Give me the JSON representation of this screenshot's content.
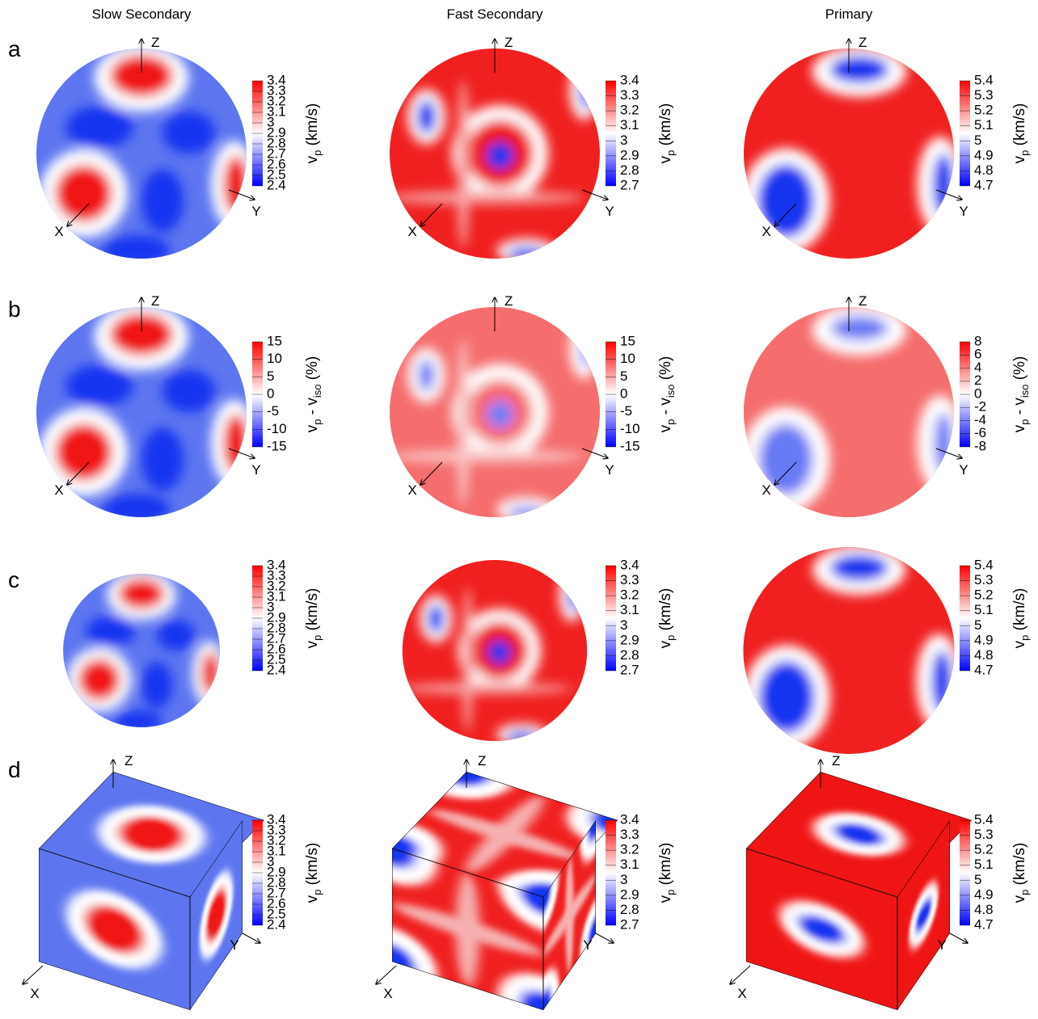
{
  "column_titles": [
    "Slow Secondary",
    "Fast Secondary",
    "Primary"
  ],
  "axis_labels": {
    "x": "X",
    "y": "Y",
    "z": "Z"
  },
  "colormap": [
    "#0000ff",
    "#ffffff",
    "#ff0000"
  ],
  "rows": [
    {
      "label": "a",
      "panels": [
        {
          "colorbar": {
            "title": [
              {
                "text": "v"
              },
              {
                "text": "p",
                "sub": true
              },
              {
                "text": " (km/s)"
              }
            ],
            "ticks": [
              3.4,
              3.3,
              3.2,
              3.1,
              3,
              2.9,
              2.8,
              2.7,
              2.6,
              2.5,
              2.4
            ]
          }
        },
        {
          "colorbar": {
            "title": [
              {
                "text": "v"
              },
              {
                "text": "p",
                "sub": true
              },
              {
                "text": " (km/s)"
              }
            ],
            "ticks": [
              3.4,
              3.3,
              3.2,
              3.1,
              3,
              2.9,
              2.8,
              2.7
            ]
          }
        },
        {
          "colorbar": {
            "title": [
              {
                "text": "v"
              },
              {
                "text": "p",
                "sub": true
              },
              {
                "text": " (km/s)"
              }
            ],
            "ticks": [
              5.4,
              5.3,
              5.2,
              5.1,
              5,
              4.9,
              4.8,
              4.7
            ]
          }
        }
      ]
    },
    {
      "label": "b",
      "panels": [
        {
          "colorbar": {
            "title": [
              {
                "text": "v"
              },
              {
                "text": "p",
                "sub": true
              },
              {
                "text": " - v"
              },
              {
                "text": "iso",
                "sub": true
              },
              {
                "text": " (%)"
              }
            ],
            "ticks": [
              15,
              10,
              5,
              0,
              -5,
              -10,
              -15
            ]
          }
        },
        {
          "colorbar": {
            "title": [
              {
                "text": "v"
              },
              {
                "text": "p",
                "sub": true
              },
              {
                "text": " - v"
              },
              {
                "text": "iso",
                "sub": true
              },
              {
                "text": " (%)"
              }
            ],
            "ticks": [
              15,
              10,
              5,
              0,
              -5,
              -10,
              -15
            ]
          }
        },
        {
          "colorbar": {
            "title": [
              {
                "text": "v"
              },
              {
                "text": "p",
                "sub": true
              },
              {
                "text": " - v"
              },
              {
                "text": "iso",
                "sub": true
              },
              {
                "text": " (%)"
              }
            ],
            "ticks": [
              8,
              6,
              4,
              2,
              0,
              -2,
              -4,
              -6,
              -8
            ]
          }
        }
      ]
    },
    {
      "label": "c",
      "panels": [
        {
          "colorbar": {
            "title": [
              {
                "text": "v"
              },
              {
                "text": "p",
                "sub": true
              },
              {
                "text": " (km/s)"
              }
            ],
            "ticks": [
              3.4,
              3.3,
              3.2,
              3.1,
              3,
              2.9,
              2.8,
              2.7,
              2.6,
              2.5,
              2.4
            ]
          }
        },
        {
          "colorbar": {
            "title": [
              {
                "text": "v"
              },
              {
                "text": "p",
                "sub": true
              },
              {
                "text": " (km/s)"
              }
            ],
            "ticks": [
              3.4,
              3.3,
              3.2,
              3.1,
              3,
              2.9,
              2.8,
              2.7
            ]
          }
        },
        {
          "colorbar": {
            "title": [
              {
                "text": "v"
              },
              {
                "text": "p",
                "sub": true
              },
              {
                "text": " (km/s)"
              }
            ],
            "ticks": [
              5.4,
              5.3,
              5.2,
              5.1,
              5,
              4.9,
              4.8,
              4.7
            ]
          }
        }
      ]
    },
    {
      "label": "d",
      "panels": [
        {
          "colorbar": {
            "title": [
              {
                "text": "v"
              },
              {
                "text": "p",
                "sub": true
              },
              {
                "text": " (km/s)"
              }
            ],
            "ticks": [
              3.4,
              3.3,
              3.2,
              3.1,
              3,
              2.9,
              2.8,
              2.7,
              2.6,
              2.5,
              2.4
            ]
          }
        },
        {
          "colorbar": {
            "title": [
              {
                "text": "v"
              },
              {
                "text": "p",
                "sub": true
              },
              {
                "text": " (km/s)"
              }
            ],
            "ticks": [
              3.4,
              3.3,
              3.2,
              3.1,
              3,
              2.9,
              2.8,
              2.7
            ]
          }
        },
        {
          "colorbar": {
            "title": [
              {
                "text": "v"
              },
              {
                "text": "p",
                "sub": true
              },
              {
                "text": " (km/s)"
              }
            ],
            "ticks": [
              5.4,
              5.3,
              5.2,
              5.1,
              5,
              4.9,
              4.8,
              4.7
            ]
          }
        }
      ]
    }
  ]
}
